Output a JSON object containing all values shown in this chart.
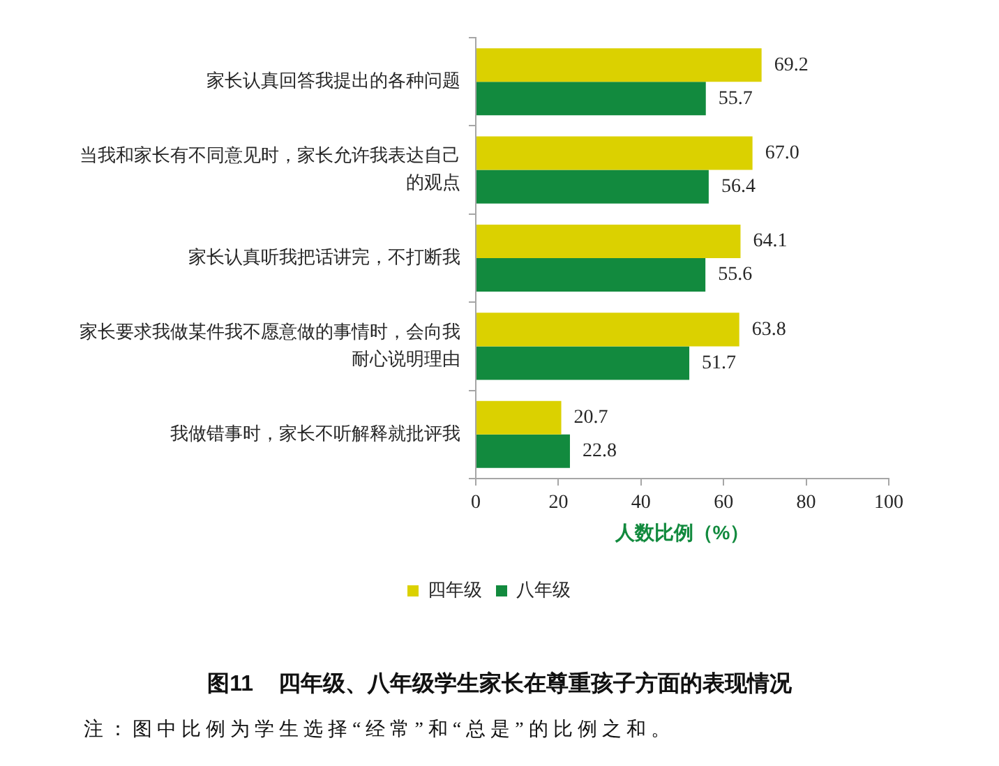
{
  "chart_data": {
    "type": "bar",
    "orientation": "horizontal",
    "title": "图11    四年级、八年级学生家长在尊重孩子方面的表现情况",
    "categories": [
      "家长认真回答我提出的各种问题",
      "当我和家长有不同意见时，家长允许我表达自己的观点",
      "家长认真听我把话讲完，不打断我",
      "家长要求我做某件我不愿意做的事情时，会向我耐心说明理由",
      "我做错事时，家长不听解释就批评我"
    ],
    "series": [
      {
        "name": "四年级",
        "color": "#dbd100",
        "values": [
          69.2,
          67.0,
          64.1,
          63.8,
          20.7
        ],
        "value_labels": [
          "69.2",
          "67.0",
          "64.1",
          "63.8",
          "20.7"
        ]
      },
      {
        "name": "八年级",
        "color": "#128a3e",
        "values": [
          55.7,
          56.4,
          55.6,
          51.7,
          22.8
        ],
        "value_labels": [
          "55.7",
          "56.4",
          "55.6",
          "51.7",
          "22.8"
        ]
      }
    ],
    "xlabel": "人数比例（%）",
    "xlim": [
      0,
      100
    ],
    "xticks": [
      0,
      20,
      40,
      60,
      80,
      100
    ],
    "legend": "bottom",
    "annotations": [
      "注：图中比例为学生选择“经常”和“总是”的比例之和。"
    ]
  }
}
